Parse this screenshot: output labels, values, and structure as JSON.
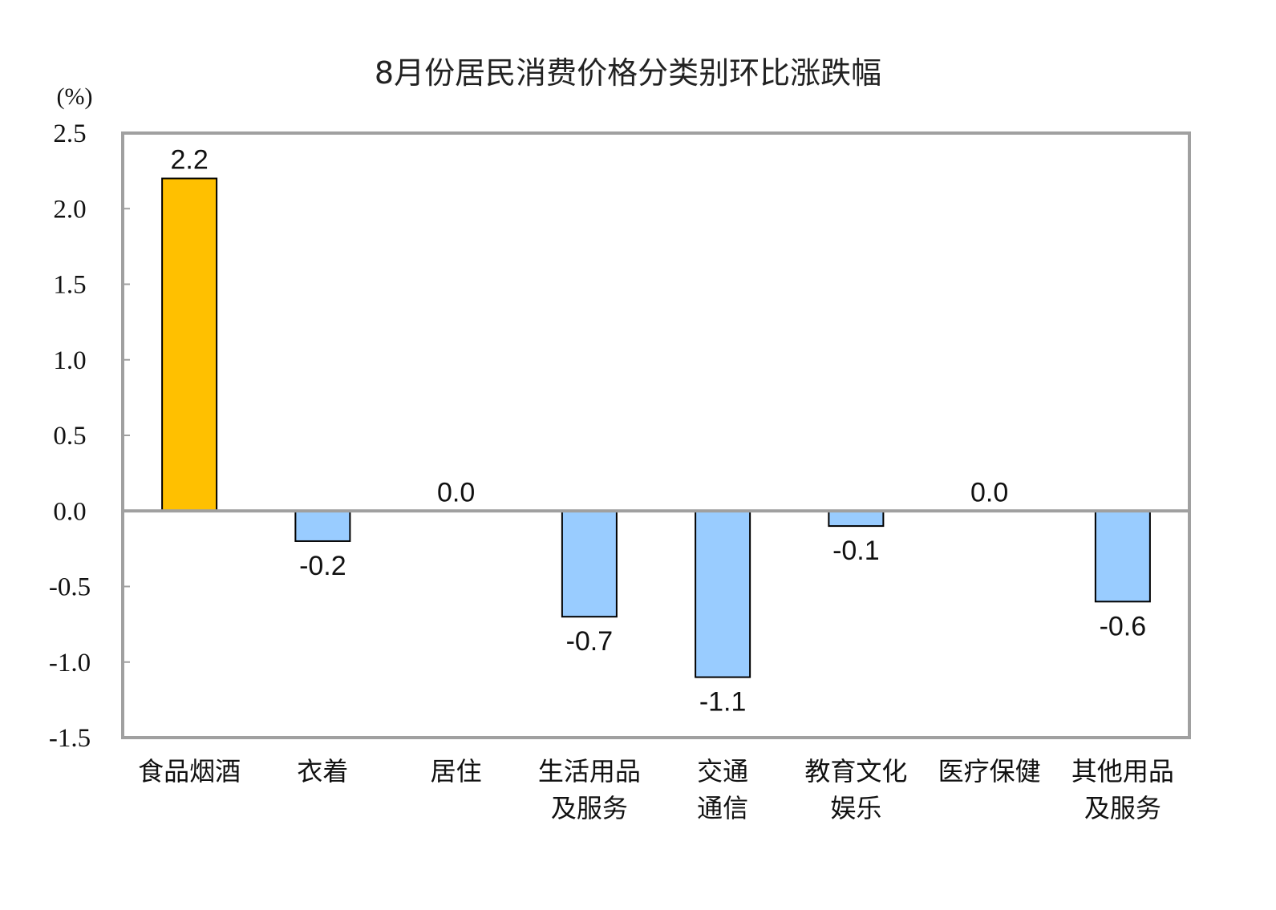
{
  "chart_data": {
    "type": "bar",
    "title": "8月份居民消费价格分类别环比涨跌幅",
    "ylabel": "(%)",
    "xlabel": "",
    "ylim": [
      -1.5,
      2.5
    ],
    "yticks": [
      "2.5",
      "2.0",
      "1.5",
      "1.0",
      "0.5",
      "0.0",
      "-0.5",
      "-1.0",
      "-1.5"
    ],
    "ytick_values": [
      2.5,
      2.0,
      1.5,
      1.0,
      0.5,
      0.0,
      -0.5,
      -1.0,
      -1.5
    ],
    "categories": [
      [
        "食品烟酒"
      ],
      [
        "衣着"
      ],
      [
        "居住"
      ],
      [
        "生活用品",
        "及服务"
      ],
      [
        "交通",
        "通信"
      ],
      [
        "教育文化",
        "娱乐"
      ],
      [
        "医疗保健"
      ],
      [
        "其他用品",
        "及服务"
      ]
    ],
    "values": [
      2.2,
      -0.2,
      0.0,
      -0.7,
      -1.1,
      -0.1,
      0.0,
      -0.6
    ],
    "data_labels": [
      "2.2",
      "-0.2",
      "0.0",
      "-0.7",
      "-1.1",
      "-0.1",
      "0.0",
      "-0.6"
    ],
    "colors": {
      "positive": "#FFC000",
      "negative": "#99CCFF",
      "frame": "#A0A0A0",
      "bar_border": "#000000"
    },
    "grid": false,
    "legend": "none"
  }
}
